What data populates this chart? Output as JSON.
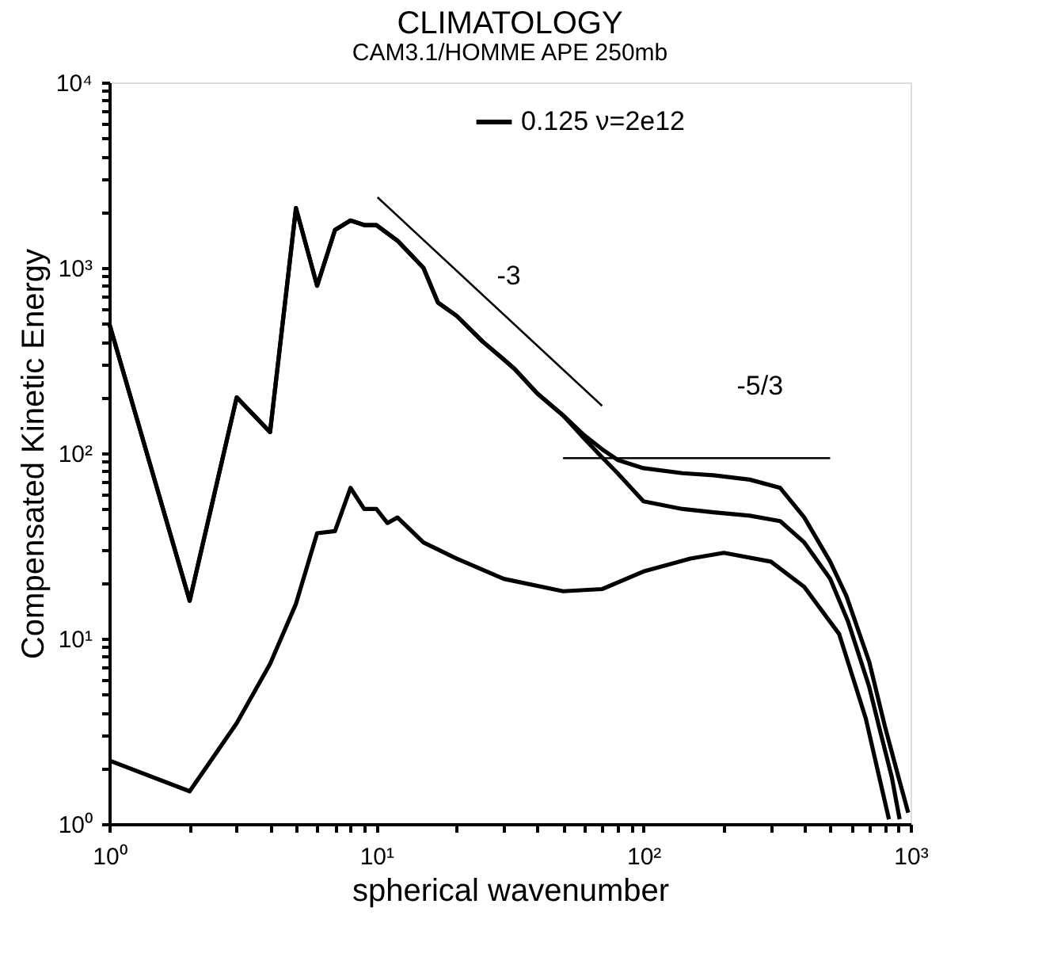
{
  "chart_data": {
    "type": "line",
    "title": "CLIMATOLOGY",
    "subtitle": "CAM3.1/HOMME APE  250mb",
    "xlabel": "spherical wavenumber",
    "ylabel": "Compensated Kinetic Energy",
    "xlim": [
      1,
      1000
    ],
    "ylim": [
      1,
      10000
    ],
    "xticks": [
      {
        "value": 1,
        "label": "10⁰"
      },
      {
        "value": 2,
        "label": null
      },
      {
        "value": 3,
        "label": null
      },
      {
        "value": 4,
        "label": null
      },
      {
        "value": 5,
        "label": null
      },
      {
        "value": 6,
        "label": null
      },
      {
        "value": 7,
        "label": null
      },
      {
        "value": 8,
        "label": null
      },
      {
        "value": 9,
        "label": null
      },
      {
        "value": 10,
        "label": "10¹"
      },
      {
        "value": 20,
        "label": null
      },
      {
        "value": 30,
        "label": null
      },
      {
        "value": 40,
        "label": null
      },
      {
        "value": 50,
        "label": null
      },
      {
        "value": 60,
        "label": null
      },
      {
        "value": 70,
        "label": null
      },
      {
        "value": 80,
        "label": null
      },
      {
        "value": 90,
        "label": null
      },
      {
        "value": 100,
        "label": "10²"
      },
      {
        "value": 200,
        "label": null
      },
      {
        "value": 300,
        "label": null
      },
      {
        "value": 400,
        "label": null
      },
      {
        "value": 500,
        "label": null
      },
      {
        "value": 600,
        "label": null
      },
      {
        "value": 700,
        "label": null
      },
      {
        "value": 800,
        "label": null
      },
      {
        "value": 900,
        "label": null
      },
      {
        "value": 1000,
        "label": "10³"
      }
    ],
    "yticks": [
      {
        "value": 1,
        "label": "10⁰"
      },
      {
        "value": 2,
        "label": null
      },
      {
        "value": 3,
        "label": null
      },
      {
        "value": 4,
        "label": null
      },
      {
        "value": 5,
        "label": null
      },
      {
        "value": 6,
        "label": null
      },
      {
        "value": 7,
        "label": null
      },
      {
        "value": 8,
        "label": null
      },
      {
        "value": 9,
        "label": null
      },
      {
        "value": 10,
        "label": "10¹"
      },
      {
        "value": 20,
        "label": null
      },
      {
        "value": 30,
        "label": null
      },
      {
        "value": 40,
        "label": null
      },
      {
        "value": 50,
        "label": null
      },
      {
        "value": 60,
        "label": null
      },
      {
        "value": 70,
        "label": null
      },
      {
        "value": 80,
        "label": null
      },
      {
        "value": 90,
        "label": null
      },
      {
        "value": 100,
        "label": "10²"
      },
      {
        "value": 200,
        "label": null
      },
      {
        "value": 300,
        "label": null
      },
      {
        "value": 400,
        "label": null
      },
      {
        "value": 500,
        "label": null
      },
      {
        "value": 600,
        "label": null
      },
      {
        "value": 700,
        "label": null
      },
      {
        "value": 800,
        "label": null
      },
      {
        "value": 900,
        "label": null
      },
      {
        "value": 1000,
        "label": "10³"
      },
      {
        "value": 2000,
        "label": null
      },
      {
        "value": 3000,
        "label": null
      },
      {
        "value": 4000,
        "label": null
      },
      {
        "value": 5000,
        "label": null
      },
      {
        "value": 6000,
        "label": null
      },
      {
        "value": 7000,
        "label": null
      },
      {
        "value": 8000,
        "label": null
      },
      {
        "value": 9000,
        "label": null
      },
      {
        "value": 10000,
        "label": "10⁴"
      }
    ],
    "log": "xy",
    "grid": false,
    "legend": "top",
    "marker": "none",
    "line_style": "solid",
    "series": [
      {
        "name": "0.125  ν=2e12",
        "color": "#000000",
        "x": [
          1,
          2,
          3,
          4,
          5,
          6,
          7,
          8,
          9,
          10,
          12,
          15,
          17,
          20,
          25,
          30,
          33,
          40,
          50,
          60,
          70,
          80,
          100,
          140,
          183,
          250,
          325,
          400,
          500,
          575,
          700,
          800,
          900,
          980
        ],
        "values": [
          500,
          16,
          200,
          130,
          2100,
          800,
          1600,
          1800,
          1700,
          1700,
          1400,
          1000,
          650,
          550,
          400,
          320,
          284,
          210,
          160,
          125,
          105,
          92,
          83,
          78,
          76,
          72,
          65,
          45,
          26,
          17,
          7.5,
          3.4,
          1.8,
          1.15
        ]
      },
      {
        "color": "#000000",
        "x": [
          1,
          2,
          3,
          4,
          5,
          6,
          7,
          8,
          9,
          10,
          12,
          15,
          17,
          20,
          25,
          30,
          33,
          40,
          50,
          60,
          70,
          80,
          100,
          140,
          183,
          250,
          325,
          400,
          500,
          583,
          700,
          760,
          850,
          910
        ],
        "values": [
          500,
          16,
          200,
          130,
          2100,
          800,
          1600,
          1800,
          1700,
          1700,
          1400,
          1000,
          650,
          550,
          400,
          320,
          284,
          210,
          160,
          120,
          95,
          78,
          55,
          50,
          48,
          46,
          43,
          33,
          21,
          12.4,
          5.5,
          3.4,
          1.8,
          1.06
        ]
      },
      {
        "color": "#000000",
        "x": [
          1,
          2,
          3,
          4,
          5,
          6,
          7,
          8,
          9,
          10,
          11,
          12,
          15,
          20,
          30,
          50,
          70,
          100,
          150,
          200,
          300,
          400,
          540,
          680,
          750,
          830
        ],
        "values": [
          2.2,
          1.5,
          3.5,
          7.3,
          15.4,
          37,
          38,
          65,
          50,
          50,
          42,
          45,
          33,
          27,
          21,
          18,
          18.5,
          23,
          27,
          29,
          26,
          19,
          10.6,
          3.7,
          2,
          1.06
        ]
      },
      {
        "color": "#000000",
        "x": [
          10.1,
          70
        ],
        "values": [
          2400,
          180
        ]
      },
      {
        "color": "#000000",
        "x": [
          50,
          500
        ],
        "values": [
          94,
          94
        ]
      }
    ],
    "annotations": [
      "-3",
      "-5/3"
    ]
  }
}
